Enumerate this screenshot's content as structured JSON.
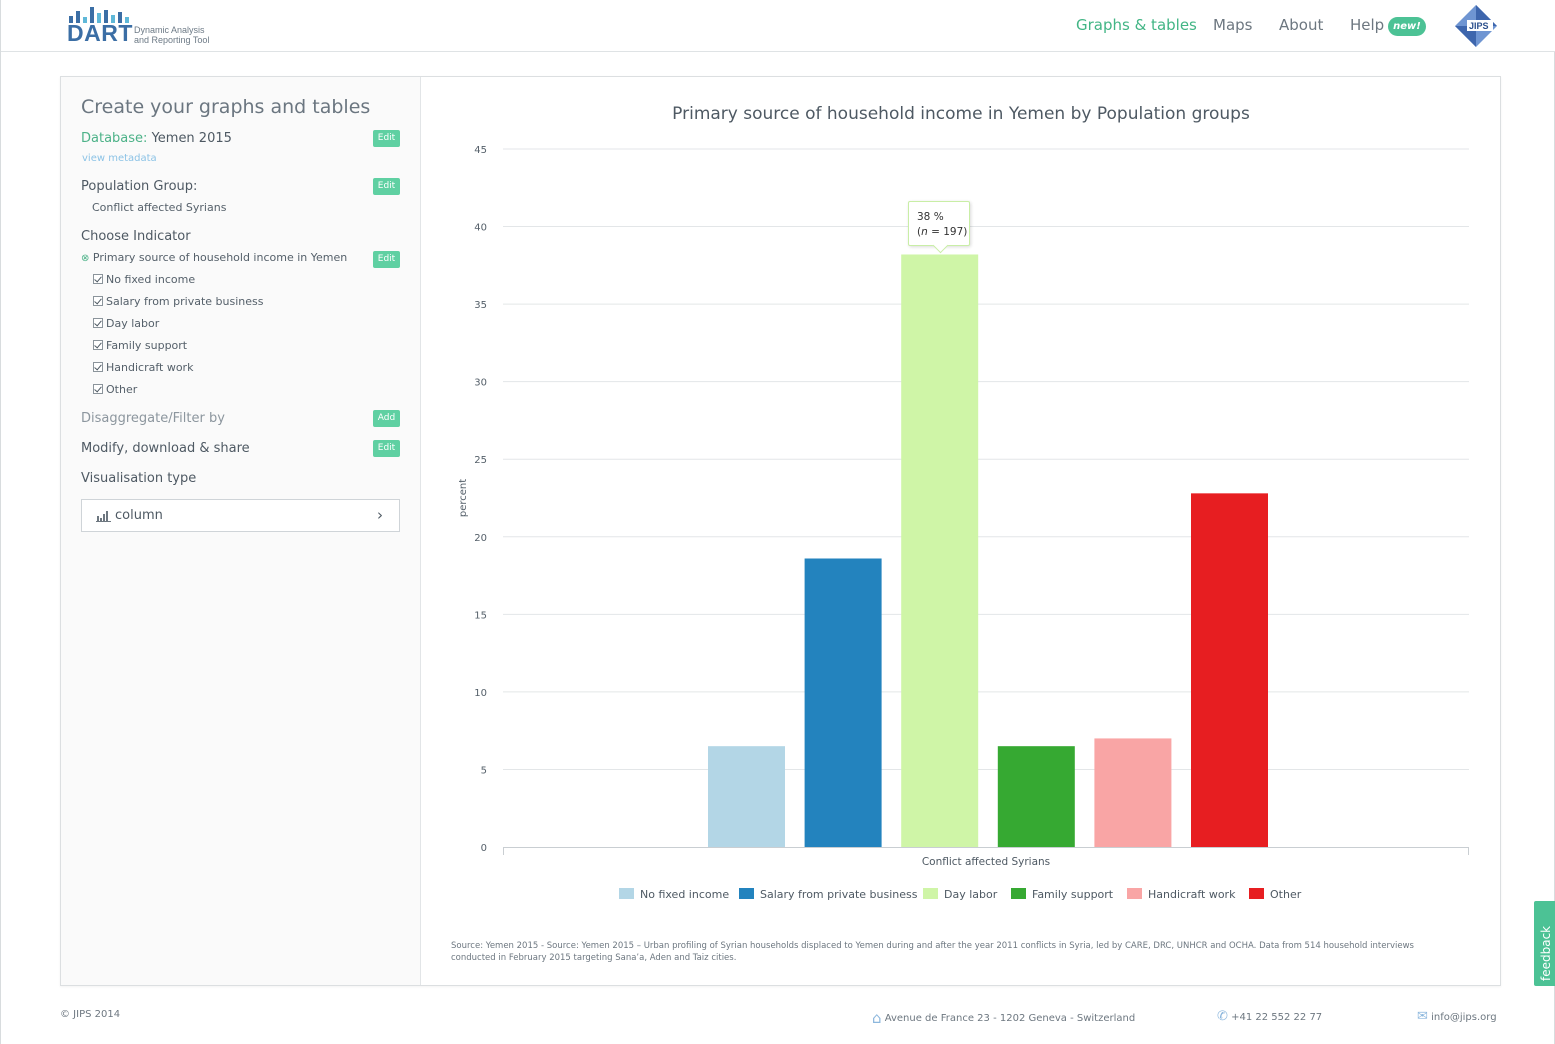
{
  "header": {
    "logo_text": "DART",
    "logo_sub_1": "Dynamic Analysis",
    "logo_sub_2": "and Reporting Tool",
    "nav": [
      "Graphs & tables",
      "Maps",
      "About",
      "Help"
    ],
    "help_badge": "new!",
    "jips_text": "JIPS",
    "accent": "#42b585"
  },
  "sidebar": {
    "title": "Create your graphs and tables",
    "database_label": "Database:",
    "database_value": "Yemen 2015",
    "edit_label": "Edit",
    "add_label": "Add",
    "view_metadata": "view metadata",
    "population_label": "Population Group:",
    "population_value": "Conflict affected Syrians",
    "indicator_label": "Choose Indicator",
    "indicator_value": "Primary source of household income in Yemen",
    "options": [
      "No fixed income",
      "Salary from private business",
      "Day labor",
      "Family support",
      "Handicraft work",
      "Other"
    ],
    "disaggregate_label": "Disaggregate/Filter by",
    "modify_label": "Modify, download & share",
    "vis_label": "Visualisation type",
    "vis_value": "column"
  },
  "chart_title": "Primary source of household income in Yemen by Population groups",
  "tooltip": {
    "pct": "38 %",
    "n_prefix": "(",
    "n_var": "n",
    "n_value": " = 197)"
  },
  "chart_data": {
    "type": "bar",
    "title": "Primary source of household income in Yemen by Population groups",
    "ylabel": "percent",
    "xlabel": "Conflict affected Syrians",
    "ylim": [
      0,
      45
    ],
    "yticks": [
      0,
      5,
      10,
      15,
      20,
      25,
      30,
      35,
      40,
      45
    ],
    "categories": [
      "Conflict affected Syrians"
    ],
    "legend": "bottom",
    "grid": true,
    "series": [
      {
        "name": "No fixed income",
        "values": [
          6.5
        ],
        "color": "#b3d6e6"
      },
      {
        "name": "Salary from private business",
        "values": [
          18.6
        ],
        "color": "#2383be"
      },
      {
        "name": "Day labor",
        "values": [
          38.2
        ],
        "color": "#cff5a7"
      },
      {
        "name": "Family support",
        "values": [
          6.5
        ],
        "color": "#36a932"
      },
      {
        "name": "Handicraft work",
        "values": [
          7
        ],
        "color": "#f9a5a5"
      },
      {
        "name": "Other",
        "values": [
          22.8
        ],
        "color": "#e71e21"
      }
    ]
  },
  "source_text": "Source: Yemen 2015 - Source: Yemen 2015 – Urban profiling of Syrian households displaced to Yemen during and after the year 2011 conflicts in Syria, led by CARE, DRC, UNHCR and OCHA. Data from 514 household interviews conducted in February 2015 targeting Sana’a, Aden and Taiz cities.",
  "footer": {
    "copyright": "© JIPS 2014",
    "address": "Avenue de France 23 - 1202 Geneva - Switzerland",
    "phone": "+41 22 552 22 77",
    "email": "info@jips.org"
  },
  "feedback": "feedback"
}
